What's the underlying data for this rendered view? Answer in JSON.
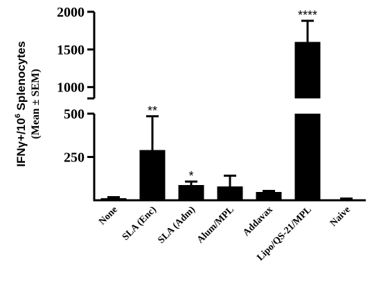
{
  "chart_data": {
    "type": "bar",
    "categories": [
      "None",
      "SLA (Enc)",
      "SLA (Adm)",
      "Alum/MPL",
      "Addavax",
      "Lipo/QS-21/MPL",
      "Naive"
    ],
    "values": [
      12,
      290,
      88,
      80,
      48,
      1600,
      6
    ],
    "errors": [
      6,
      195,
      20,
      62,
      6,
      280,
      4
    ],
    "significance": [
      "",
      "**",
      "*",
      "",
      "",
      "****",
      ""
    ],
    "ylabel_main": "IFNγ+/10",
    "ylabel_sup": "6",
    "ylabel_rest": " Splenocytes",
    "ylabel_sub": "(Mean ± SEM)",
    "axis_break": true,
    "lower_segment": {
      "ylim": [
        0,
        500
      ],
      "ticks": [
        250,
        500
      ]
    },
    "upper_segment": {
      "ylim": [
        850,
        2000
      ],
      "ticks": [
        1000,
        1500,
        2000
      ]
    },
    "bar_color": "#000000",
    "grid": false
  }
}
